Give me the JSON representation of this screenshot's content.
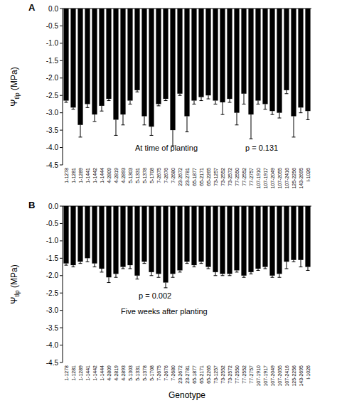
{
  "chart_data": [
    {
      "type": "bar",
      "title": "A",
      "y_label": "Ψtlp (MPa)",
      "annotations": [
        "At time of planting",
        "p = 0.131"
      ],
      "categories": [
        "1-1278",
        "1-1281",
        "1-1289",
        "1-1441",
        "1-1442",
        "1-1444",
        "4-2809",
        "4-2819",
        "4-2893",
        "5-1303",
        "5-1331",
        "5-1378",
        "5-1708",
        "7-2675",
        "7-2676",
        "7-2680",
        "23-2672",
        "23-2781",
        "65-1877",
        "65-2171",
        "65-2265",
        "73-1257",
        "73-2552",
        "73-2572",
        "77-2550",
        "77-2552",
        "77-2757",
        "107-1910",
        "107-1917",
        "107-2049",
        "107-2055",
        "107-2416",
        "125-2256",
        "143-2695",
        "I-1026"
      ],
      "values": [
        -2.65,
        -2.85,
        -3.35,
        -2.75,
        -3.05,
        -2.8,
        -2.6,
        -3.2,
        -3.05,
        -2.65,
        -2.35,
        -3.1,
        -3.4,
        -2.75,
        -2.6,
        -3.5,
        -2.45,
        -3.1,
        -2.65,
        -2.55,
        -2.5,
        -2.65,
        -2.7,
        -2.6,
        -3.0,
        -2.45,
        -3.05,
        -2.65,
        -2.75,
        -2.95,
        -3.0,
        -2.35,
        -3.1,
        -2.85,
        -2.95
      ],
      "error": [
        0.05,
        0.05,
        0.35,
        0.1,
        0.2,
        0.15,
        0.05,
        0.45,
        0.3,
        0.1,
        0.05,
        0.25,
        0.25,
        0.05,
        0.05,
        0.45,
        0.05,
        0.45,
        0.1,
        0.1,
        0.1,
        0.1,
        0.35,
        0.1,
        0.35,
        0.3,
        0.7,
        0.1,
        0.15,
        0.1,
        0.15,
        0.1,
        0.6,
        0.15,
        0.25
      ],
      "color": "#000000",
      "ylim": [
        -4.5,
        0
      ],
      "yticks": [
        {
          "value": 0,
          "label": "0.0"
        },
        -0.5,
        {
          "value": -1,
          "label": "-1.0"
        },
        -1.5,
        {
          "value": -2,
          "label": "-2.0"
        },
        -2.5,
        {
          "value": -3,
          "label": "-3.0"
        },
        -3.5,
        {
          "value": -4,
          "label": "-4.0"
        },
        -4.5
      ],
      "grid": false
    },
    {
      "type": "bar",
      "title": "B",
      "y_label": "Ψtlp (MPa)",
      "x_label": "Genotype",
      "annotations": [
        "p = 0.002",
        "Five weeks after planting"
      ],
      "categories": [
        "1-1278",
        "1-1281",
        "1-1289",
        "1-1441",
        "1-1442",
        "1-1444",
        "4-2809",
        "4-2819",
        "4-2893",
        "5-1303",
        "5-1331",
        "5-1378",
        "5-1708",
        "7-2675",
        "7-2676",
        "7-2680",
        "23-2672",
        "23-2781",
        "65-1877",
        "65-2171",
        "65-2265",
        "73-1257",
        "73-2552",
        "73-2572",
        "77-2550",
        "77-2552",
        "77-2757",
        "107-1910",
        "107-1917",
        "107-2049",
        "107-2055",
        "107-2416",
        "125-2256",
        "143-2695",
        "I-1026"
      ],
      "values": [
        -1.65,
        -1.7,
        -1.6,
        -1.5,
        -1.65,
        -1.8,
        -2.05,
        -1.95,
        -1.75,
        -1.7,
        -2.0,
        -1.6,
        -1.9,
        -1.95,
        -2.2,
        -1.95,
        -1.85,
        -1.6,
        -1.7,
        -1.6,
        -1.75,
        -1.9,
        -1.95,
        -1.95,
        -1.85,
        -2.0,
        -1.9,
        -1.8,
        -1.75,
        -2.0,
        -1.95,
        -1.6,
        -1.55,
        -1.55,
        -1.75
      ],
      "error": [
        0.05,
        0.05,
        0.05,
        0.1,
        0.1,
        0.1,
        0.15,
        0.1,
        0.05,
        0.1,
        0.1,
        0.05,
        0.1,
        0.1,
        0.15,
        0.1,
        0.05,
        0.05,
        0.05,
        0.05,
        0.05,
        0.1,
        0.05,
        0.05,
        0.05,
        0.05,
        0.05,
        0.05,
        0.05,
        0.05,
        0.1,
        0.2,
        0.05,
        0.2,
        0.1
      ],
      "color": "#000000",
      "ylim": [
        -4.5,
        0
      ],
      "yticks": [
        {
          "value": 0,
          "label": "0.0"
        },
        -0.5,
        {
          "value": -1,
          "label": "-1.0"
        },
        -1.5,
        {
          "value": -2,
          "label": "-2.0"
        },
        -2.5,
        {
          "value": -3,
          "label": "-3.0"
        },
        -3.5,
        {
          "value": -4,
          "label": "-4.0"
        },
        -4.5
      ],
      "grid": false
    }
  ]
}
